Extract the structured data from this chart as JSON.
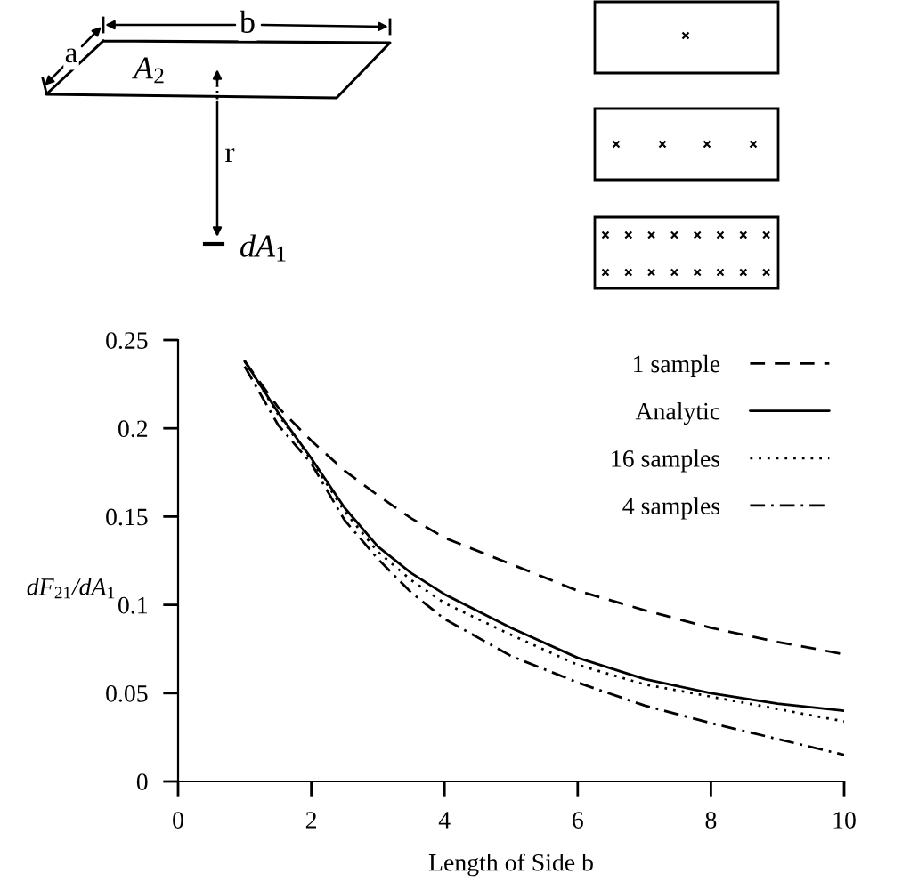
{
  "chart_data": {
    "type": "line",
    "xlabel": "Length of Side b",
    "ylabel": "dF$_{21}$/dA$_{1}$",
    "x": [
      1,
      1.5,
      2,
      2.5,
      3,
      3.5,
      4,
      5,
      6,
      7,
      8,
      9,
      10
    ],
    "series": [
      {
        "name": "1 sample",
        "color": "#000000",
        "line_style": "dashed",
        "values": [
          0.238,
          0.212,
          0.193,
          0.176,
          0.162,
          0.149,
          0.138,
          0.123,
          0.108,
          0.097,
          0.087,
          0.079,
          0.072
        ]
      },
      {
        "name": "Analytic",
        "color": "#000000",
        "line_style": "solid",
        "values": [
          0.238,
          0.209,
          0.183,
          0.155,
          0.133,
          0.118,
          0.106,
          0.087,
          0.07,
          0.058,
          0.05,
          0.044,
          0.04
        ]
      },
      {
        "name": "16 samples",
        "color": "#000000",
        "line_style": "dotted",
        "values": [
          0.238,
          0.208,
          0.182,
          0.153,
          0.13,
          0.114,
          0.101,
          0.083,
          0.066,
          0.055,
          0.048,
          0.041,
          0.034
        ]
      },
      {
        "name": "4 samples",
        "color": "#000000",
        "line_style": "dashdot",
        "values": [
          0.235,
          0.202,
          0.18,
          0.148,
          0.126,
          0.107,
          0.092,
          0.071,
          0.056,
          0.043,
          0.033,
          0.024,
          0.015
        ]
      }
    ],
    "xlim": [
      0,
      10
    ],
    "ylim": [
      0,
      0.25
    ],
    "xticks": [
      0,
      2,
      4,
      6,
      8,
      10
    ],
    "yticks": [
      0,
      0.05,
      0.1,
      0.15,
      0.2,
      0.25
    ],
    "legend": "top right",
    "annotations": [
      "a",
      "b",
      "A$_{2}$",
      "r",
      "dA$_{1}$"
    ]
  }
}
